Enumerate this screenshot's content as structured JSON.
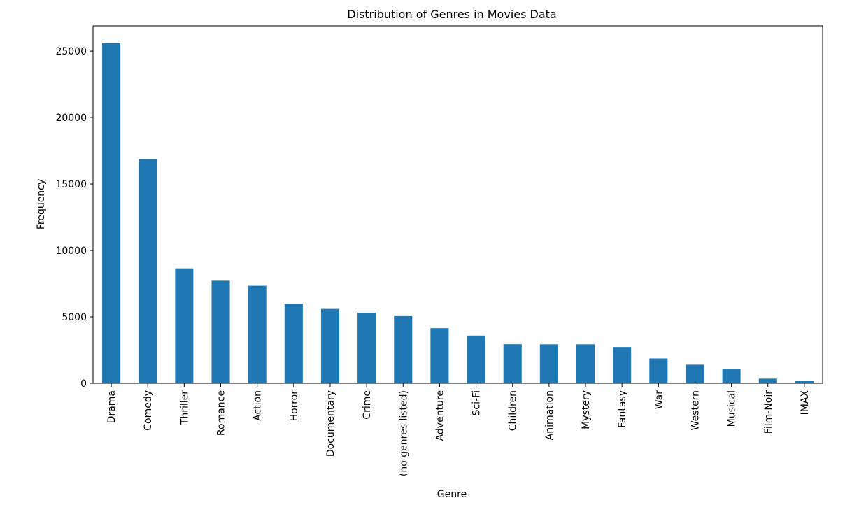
{
  "chart_data": {
    "type": "bar",
    "title": "Distribution of Genres in Movies Data",
    "xlabel": "Genre",
    "ylabel": "Frequency",
    "categories": [
      "Drama",
      "Comedy",
      "Thriller",
      "Romance",
      "Action",
      "Horror",
      "Documentary",
      "Crime",
      "(no genres listed)",
      "Adventure",
      "Sci-Fi",
      "Children",
      "Animation",
      "Mystery",
      "Fantasy",
      "War",
      "Western",
      "Musical",
      "Film-Noir",
      "IMAX"
    ],
    "values": [
      25600,
      16870,
      8650,
      7720,
      7340,
      5990,
      5600,
      5320,
      5060,
      4150,
      3590,
      2940,
      2930,
      2930,
      2730,
      1870,
      1400,
      1050,
      350,
      200
    ],
    "ylim": [
      0,
      26900
    ],
    "yticks": [
      0,
      5000,
      10000,
      15000,
      20000,
      25000
    ],
    "grid": false,
    "legend": "none",
    "bar_color": "#1f77b4"
  }
}
